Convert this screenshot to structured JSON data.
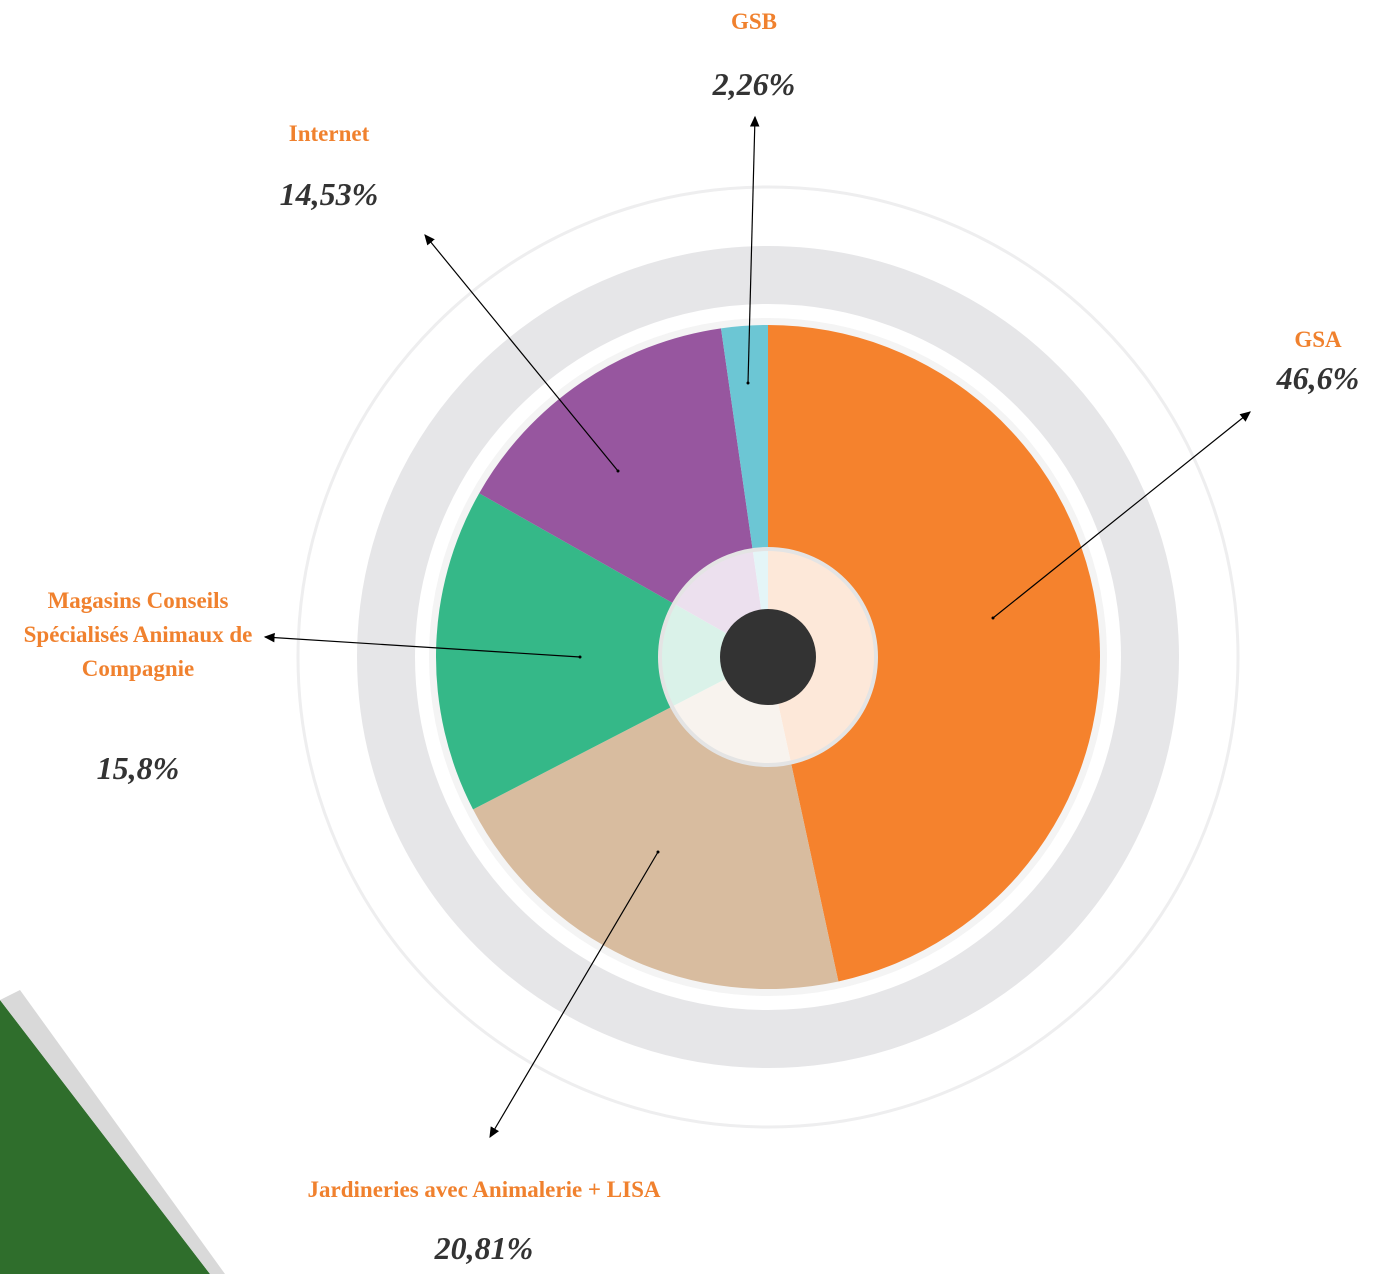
{
  "chart_data": {
    "type": "pie",
    "categories": [
      "GSA",
      "Jardineries avec Animalerie + LISA",
      "Magasins Conseils Spécialisés Animaux de Compagnie",
      "Internet",
      "GSB"
    ],
    "values": [
      46.6,
      20.81,
      15.8,
      14.53,
      2.26
    ],
    "value_labels": [
      "46,6%",
      "20,81%",
      "15,8%",
      "14,53%",
      "2,26%"
    ],
    "colors": [
      "#f5822d",
      "#d8bc9f",
      "#35b888",
      "#97569f",
      "#6cc6d4"
    ]
  }
}
